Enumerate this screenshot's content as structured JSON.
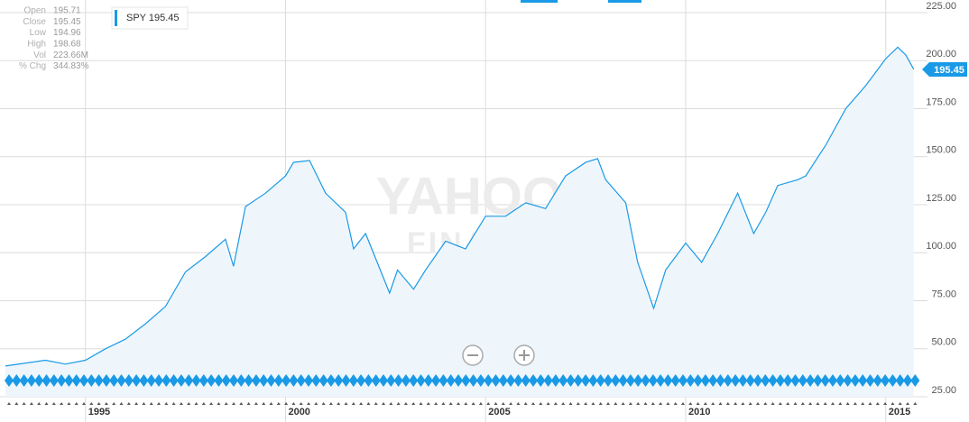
{
  "chart_data": {
    "type": "line",
    "series": [
      {
        "name": "SPY",
        "color": "#1a9ae6",
        "x": [
          1993.0,
          1994.0,
          1994.5,
          1995.0,
          1995.5,
          1996.0,
          1996.5,
          1997.0,
          1997.5,
          1998.0,
          1998.5,
          1998.7,
          1999.0,
          1999.5,
          2000.0,
          2000.2,
          2000.6,
          2001.0,
          2001.5,
          2001.7,
          2002.0,
          2002.6,
          2002.8,
          2003.2,
          2003.5,
          2004.0,
          2004.5,
          2005.0,
          2005.5,
          2006.0,
          2006.5,
          2007.0,
          2007.5,
          2007.8,
          2008.0,
          2008.5,
          2008.8,
          2009.2,
          2009.5,
          2010.0,
          2010.4,
          2010.8,
          2011.3,
          2011.7,
          2012.0,
          2012.3,
          2012.8,
          2013.0,
          2013.5,
          2014.0,
          2014.5,
          2015.0,
          2015.3,
          2015.5,
          2015.7
        ],
        "values": [
          41,
          44,
          42,
          44,
          50,
          55,
          63,
          72,
          90,
          98,
          107,
          93,
          124,
          131,
          140,
          147,
          148,
          131,
          121,
          102,
          110,
          79,
          91,
          81,
          91,
          106,
          102,
          119,
          119,
          126,
          123,
          140,
          147,
          149,
          138,
          126,
          95,
          71,
          91,
          105,
          95,
          110,
          131,
          110,
          121,
          135,
          138,
          140,
          156,
          175,
          187,
          201,
          207,
          203,
          195.45
        ]
      }
    ],
    "xlim": [
      1993,
      2015.75
    ],
    "xticks": [
      1995,
      2000,
      2005,
      2010,
      2015
    ],
    "ylim": [
      25,
      225
    ],
    "yticks": [
      {
        "value": 25,
        "label": "25.00"
      },
      {
        "value": 50,
        "label": "50.00"
      },
      {
        "value": 75,
        "label": "75.00"
      },
      {
        "value": 100,
        "label": "100.00"
      },
      {
        "value": 125,
        "label": "125.00"
      },
      {
        "value": 150,
        "label": "150.00"
      },
      {
        "value": 175,
        "label": "175.00"
      },
      {
        "value": 200,
        "label": "200.00"
      },
      {
        "value": 225,
        "label": "225.00"
      }
    ],
    "grid": true,
    "legend": "top-left",
    "last_price": 195.45,
    "info": [
      {
        "label": "Open",
        "value": "195.71"
      },
      {
        "label": "Close",
        "value": "195.45"
      },
      {
        "label": "Low",
        "value": "194.96"
      },
      {
        "label": "High",
        "value": "198.68"
      },
      {
        "label": "Vol",
        "value": "223.66M"
      },
      {
        "label": "% Chg",
        "value": "344.83%"
      }
    ],
    "watermark": [
      "YAHOO!",
      "FINANCE"
    ]
  }
}
